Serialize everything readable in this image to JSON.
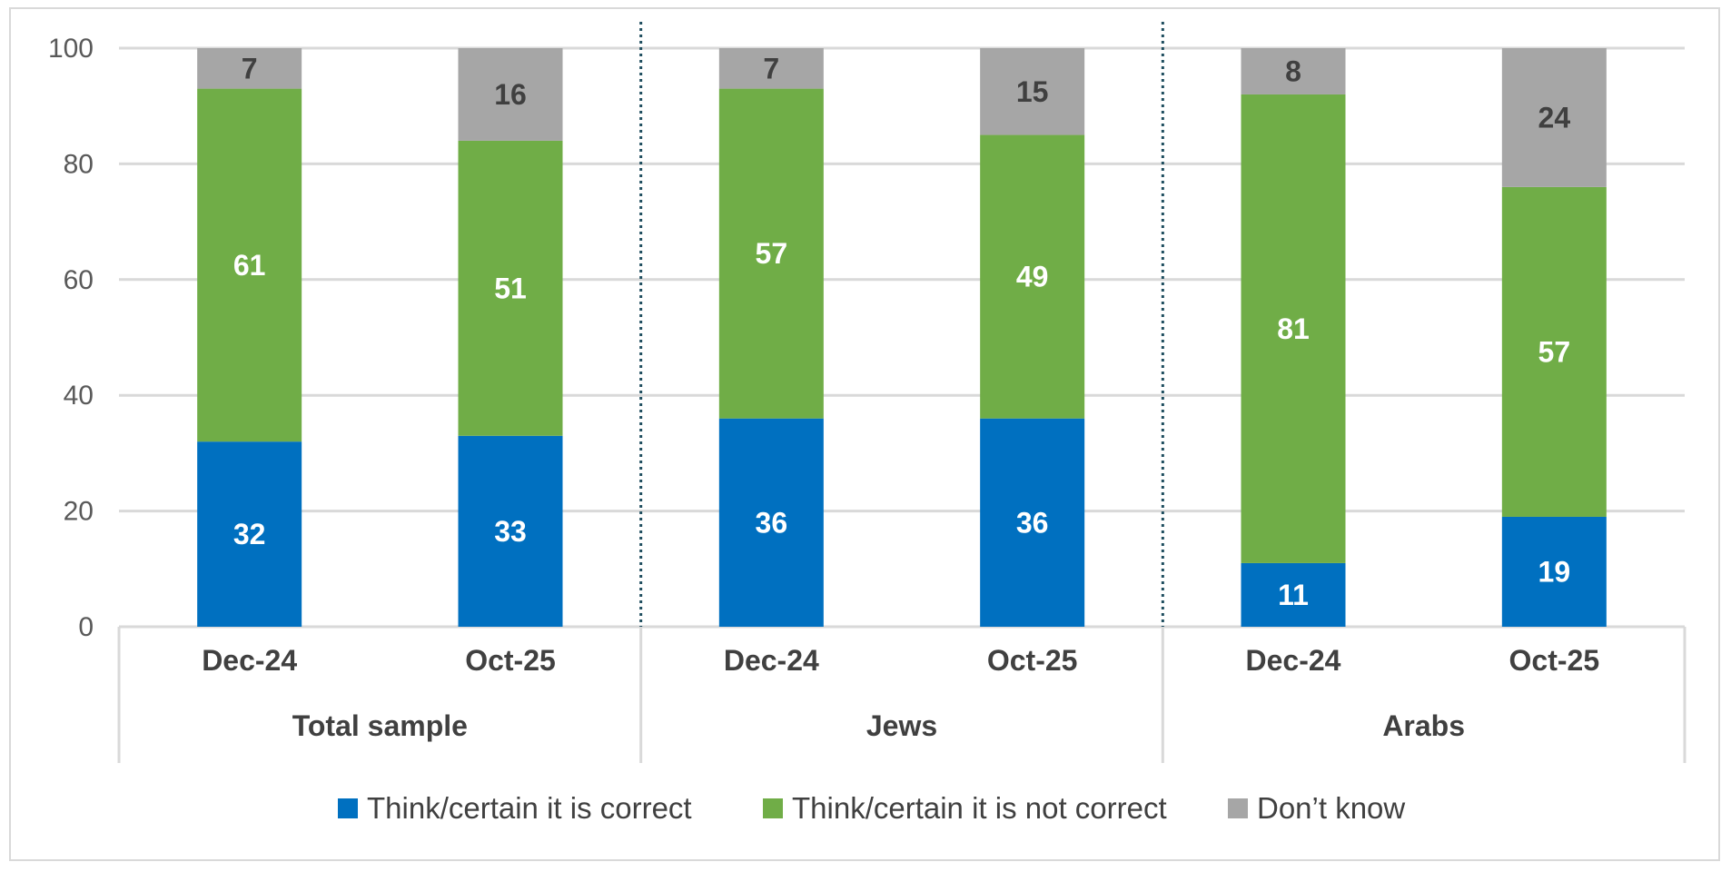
{
  "chart_data": {
    "type": "bar",
    "stacked": true,
    "groups": [
      {
        "name": "Total sample",
        "categories": [
          "Dec-24",
          "Oct-25"
        ]
      },
      {
        "name": "Jews",
        "categories": [
          "Dec-24",
          "Oct-25"
        ]
      },
      {
        "name": "Arabs",
        "categories": [
          "Dec-24",
          "Oct-25"
        ]
      }
    ],
    "categories": [
      "Dec-24",
      "Oct-25",
      "Dec-24",
      "Oct-25",
      "Dec-24",
      "Oct-25"
    ],
    "series": [
      {
        "name": "Think/certain it is correct",
        "color": "#0070c0",
        "label_color": "#ffffff",
        "values": [
          32,
          33,
          36,
          36,
          11,
          19
        ]
      },
      {
        "name": "Think/certain it is not correct",
        "color": "#70ad47",
        "label_color": "#ffffff",
        "values": [
          61,
          51,
          57,
          49,
          81,
          57
        ]
      },
      {
        "name": "Don’t know",
        "color": "#a6a6a6",
        "label_color": "#404040",
        "values": [
          7,
          16,
          7,
          15,
          8,
          24
        ]
      }
    ],
    "ylim": [
      0,
      100
    ],
    "yticks": [
      0,
      20,
      40,
      60,
      80,
      100
    ],
    "grid": true,
    "legend_position": "bottom",
    "title": "",
    "xlabel": "",
    "ylabel": ""
  }
}
